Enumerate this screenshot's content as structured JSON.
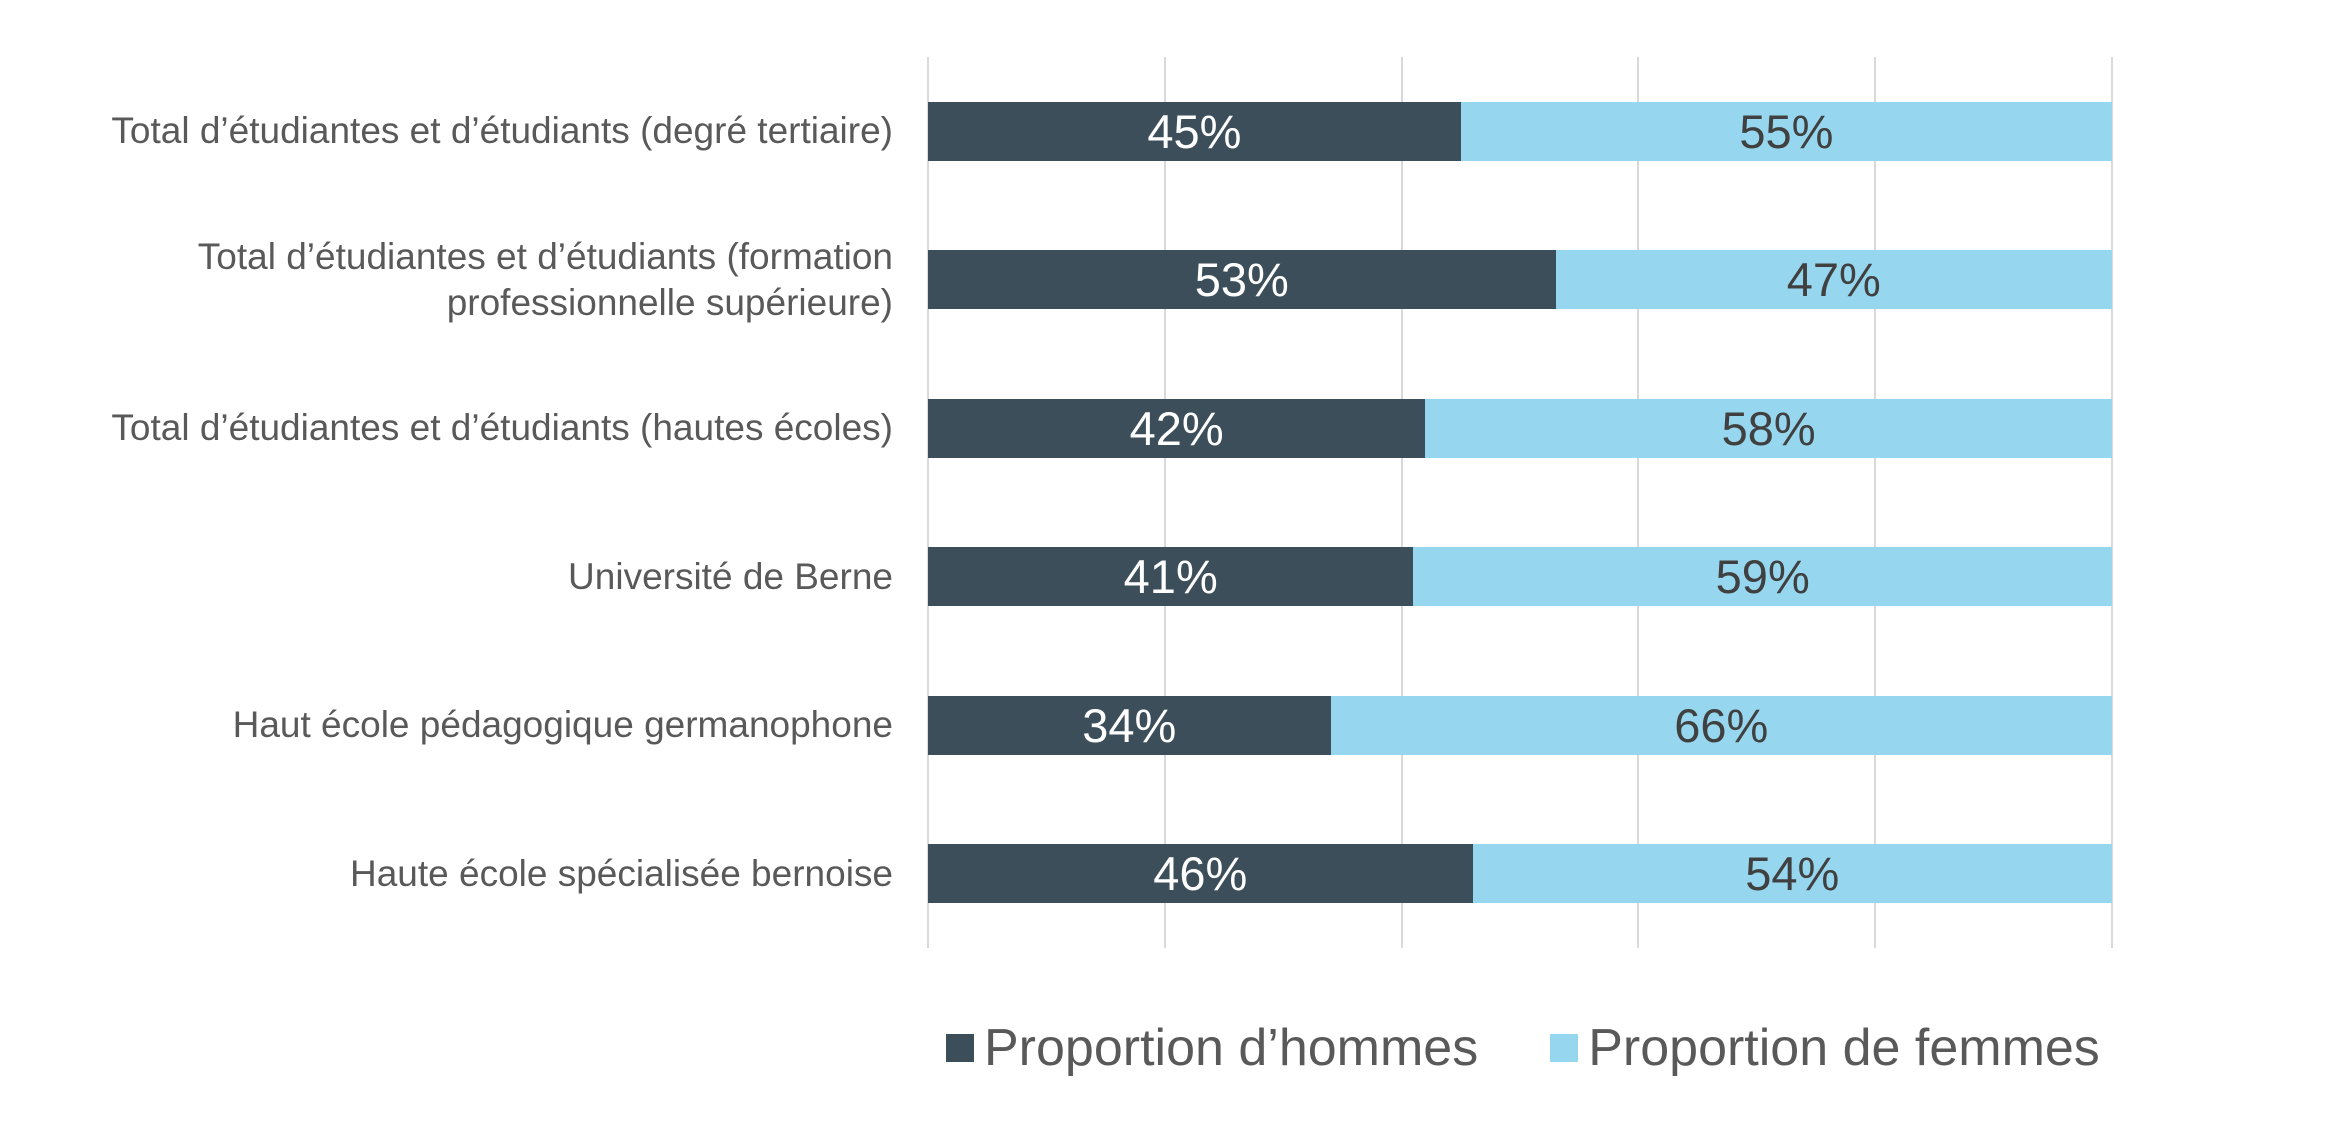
{
  "chart_data": {
    "type": "bar",
    "orientation": "horizontal",
    "stacked": true,
    "title": "",
    "categories": [
      "Total d’étudiantes et d’étudiants (degré tertiaire)",
      "Total d’étudiantes et d’étudiants (formation professionnelle supérieure)",
      "Total d’étudiantes et d’étudiants (hautes écoles)",
      "Université de Berne",
      "Haut école pédagogique germanophone",
      "Haute école spécialisée bernoise"
    ],
    "series": [
      {
        "name": "Proportion d’hommes",
        "color": "#3C4E59",
        "label_color": "#FFFFFF",
        "values": [
          45,
          53,
          42,
          41,
          34,
          46
        ]
      },
      {
        "name": "Proportion de femmes",
        "color": "#96D7EF",
        "label_color": "#404040",
        "values": [
          55,
          47,
          58,
          59,
          66,
          54
        ]
      }
    ],
    "value_suffix": "%",
    "xlim": [
      0,
      100
    ],
    "gridlines_percent": [
      0,
      20,
      40,
      60,
      80,
      100
    ],
    "grid_on": true,
    "grid_color": "#D9D9D9",
    "axis_text_color": "#595959",
    "legend_position": "bottom"
  }
}
